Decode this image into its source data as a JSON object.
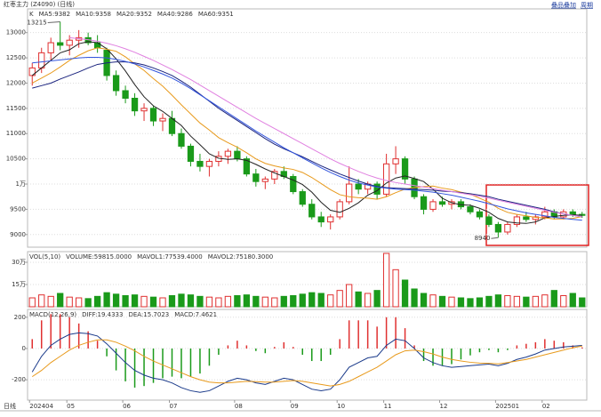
{
  "header": {
    "title": "红枣主力 (Z4090) (日线)",
    "links": [
      "叠品叠加",
      "周期"
    ]
  },
  "x_axis_label": "日线",
  "chart_data": [
    {
      "type": "candlestick",
      "legend_title": "K",
      "categories": [
        "202404",
        null,
        null,
        null,
        "05",
        null,
        null,
        null,
        null,
        null,
        "06",
        null,
        null,
        null,
        null,
        "07",
        null,
        null,
        null,
        null,
        null,
        null,
        "08",
        null,
        null,
        null,
        null,
        null,
        "09",
        null,
        null,
        null,
        null,
        "10",
        null,
        null,
        null,
        null,
        "11",
        null,
        null,
        null,
        null,
        null,
        "12",
        null,
        null,
        null,
        null,
        null,
        "202501",
        null,
        null,
        null,
        null,
        "02",
        null,
        null,
        null,
        null
      ],
      "ohlc": [
        [
          12150,
          12400,
          11950,
          12300
        ],
        [
          12300,
          12700,
          12200,
          12600
        ],
        [
          12600,
          12900,
          12450,
          12800
        ],
        [
          12800,
          13215,
          12650,
          12750
        ],
        [
          12750,
          12950,
          12550,
          12850
        ],
        [
          12850,
          13050,
          12700,
          12900
        ],
        [
          12900,
          13000,
          12750,
          12800
        ],
        [
          12800,
          12950,
          12600,
          12700
        ],
        [
          12650,
          12700,
          12050,
          12150
        ],
        [
          12150,
          12250,
          11750,
          11850
        ],
        [
          11850,
          11950,
          11600,
          11700
        ],
        [
          11700,
          11800,
          11350,
          11450
        ],
        [
          11450,
          11600,
          11250,
          11500
        ],
        [
          11500,
          11550,
          11150,
          11250
        ],
        [
          11250,
          11400,
          11050,
          11300
        ],
        [
          11300,
          11450,
          10950,
          11000
        ],
        [
          11000,
          11100,
          10700,
          10750
        ],
        [
          10750,
          10800,
          10350,
          10450
        ],
        [
          10450,
          10600,
          10250,
          10350
        ],
        [
          10350,
          10500,
          10150,
          10450
        ],
        [
          10450,
          10650,
          10350,
          10550
        ],
        [
          10550,
          10700,
          10400,
          10650
        ],
        [
          10650,
          10750,
          10450,
          10500
        ],
        [
          10500,
          10550,
          10150,
          10200
        ],
        [
          10200,
          10300,
          9950,
          10050
        ],
        [
          10050,
          10150,
          9900,
          10100
        ],
        [
          10100,
          10300,
          10000,
          10250
        ],
        [
          10250,
          10350,
          10100,
          10150
        ],
        [
          10150,
          10200,
          9800,
          9850
        ],
        [
          9850,
          9900,
          9550,
          9600
        ],
        [
          9600,
          9700,
          9300,
          9350
        ],
        [
          9350,
          9450,
          9150,
          9250
        ],
        [
          9250,
          9400,
          9100,
          9350
        ],
        [
          9350,
          9700,
          9300,
          9650
        ],
        [
          9650,
          10350,
          9600,
          10000
        ],
        [
          10000,
          10100,
          9800,
          9900
        ],
        [
          9900,
          10050,
          9800,
          10000
        ],
        [
          10000,
          10050,
          9700,
          9800
        ],
        [
          9800,
          10600,
          9750,
          10400
        ],
        [
          10400,
          10750,
          10200,
          10500
        ],
        [
          10500,
          10550,
          10000,
          10100
        ],
        [
          10100,
          10150,
          9700,
          9750
        ],
        [
          9750,
          9800,
          9400,
          9500
        ],
        [
          9500,
          9700,
          9450,
          9650
        ],
        [
          9650,
          9750,
          9550,
          9600
        ],
        [
          9600,
          9700,
          9500,
          9650
        ],
        [
          9650,
          9700,
          9500,
          9550
        ],
        [
          9550,
          9600,
          9400,
          9450
        ],
        [
          9450,
          9500,
          9300,
          9350
        ],
        [
          9350,
          9400,
          9150,
          9200
        ],
        [
          9200,
          9250,
          8940,
          9050
        ],
        [
          9050,
          9250,
          9000,
          9200
        ],
        [
          9200,
          9400,
          9150,
          9350
        ],
        [
          9350,
          9450,
          9250,
          9300
        ],
        [
          9300,
          9400,
          9200,
          9350
        ],
        [
          9350,
          9550,
          9300,
          9450
        ],
        [
          9450,
          9500,
          9300,
          9350
        ],
        [
          9350,
          9500,
          9300,
          9450
        ],
        [
          9450,
          9500,
          9350,
          9400
        ],
        [
          9400,
          9450,
          9330,
          9380
        ]
      ],
      "up_color": "#e03030",
      "down_color": "#1a9a1a",
      "series": [
        {
          "name": "MA5:9382",
          "color": "#222222",
          "values": [
            12150,
            12300,
            12450,
            12600,
            12660,
            12780,
            12820,
            12800,
            12680,
            12480,
            12240,
            11970,
            11730,
            11550,
            11440,
            11300,
            11160,
            10950,
            10780,
            10600,
            10510,
            10490,
            10500,
            10470,
            10390,
            10300,
            10220,
            10150,
            10080,
            9990,
            9840,
            9640,
            9480,
            9440,
            9520,
            9630,
            9780,
            9870,
            10020,
            10120,
            10160,
            10110,
            10050,
            9900,
            9720,
            9630,
            9590,
            9580,
            9520,
            9440,
            9320,
            9250,
            9230,
            9220,
            9250,
            9330,
            9360,
            9380,
            9390,
            9382
          ]
        },
        {
          "name": "MA10:9358",
          "color": "#e89a1c",
          "values": [
            12000,
            12100,
            12200,
            12320,
            12450,
            12550,
            12640,
            12700,
            12670,
            12630,
            12520,
            12380,
            12250,
            12090,
            11940,
            11760,
            11570,
            11390,
            11210,
            11070,
            10920,
            10820,
            10730,
            10620,
            10500,
            10410,
            10360,
            10320,
            10290,
            10230,
            10130,
            10010,
            9890,
            9790,
            9750,
            9730,
            9720,
            9700,
            9750,
            9830,
            9900,
            9930,
            9950,
            9960,
            9920,
            9890,
            9840,
            9800,
            9720,
            9640,
            9520,
            9440,
            9400,
            9370,
            9340,
            9330,
            9310,
            9310,
            9320,
            9358
          ]
        },
        {
          "name": "MA20:9352",
          "color": "#1a237e",
          "values": [
            11900,
            11950,
            12000,
            12080,
            12150,
            12220,
            12300,
            12370,
            12400,
            12420,
            12420,
            12400,
            12360,
            12300,
            12230,
            12150,
            12040,
            11920,
            11780,
            11640,
            11500,
            11380,
            11260,
            11140,
            11020,
            10900,
            10790,
            10700,
            10620,
            10540,
            10450,
            10360,
            10280,
            10200,
            10130,
            10060,
            10000,
            9950,
            9930,
            9920,
            9910,
            9900,
            9890,
            9880,
            9860,
            9850,
            9830,
            9810,
            9780,
            9750,
            9700,
            9660,
            9620,
            9580,
            9540,
            9500,
            9450,
            9410,
            9380,
            9352
          ]
        },
        {
          "name": "MA40:9286",
          "color": "#3355dd",
          "values": [
            12400,
            12420,
            12440,
            12460,
            12480,
            12500,
            12510,
            12510,
            12500,
            12470,
            12430,
            12380,
            12320,
            12250,
            12180,
            12100,
            12000,
            11890,
            11770,
            11650,
            11530,
            11410,
            11290,
            11170,
            11050,
            10940,
            10830,
            10720,
            10620,
            10520,
            10420,
            10320,
            10230,
            10150,
            10080,
            10020,
            9980,
            9940,
            9920,
            9900,
            9890,
            9880,
            9860,
            9840,
            9810,
            9780,
            9740,
            9700,
            9660,
            9610,
            9560,
            9510,
            9470,
            9430,
            9400,
            9370,
            9340,
            9320,
            9300,
            9286
          ]
        },
        {
          "name": "MA60:9351",
          "color": "#e080e0",
          "values": [
            null,
            null,
            null,
            null,
            12900,
            12880,
            12860,
            12830,
            12790,
            12740,
            12680,
            12610,
            12530,
            12450,
            12360,
            12270,
            12170,
            12070,
            11960,
            11850,
            11740,
            11630,
            11520,
            11410,
            11300,
            11200,
            11100,
            11000,
            10900,
            10800,
            10700,
            10600,
            10500,
            10410,
            10330,
            10250,
            10180,
            10120,
            10070,
            10030,
            10000,
            9970,
            9940,
            9910,
            9880,
            9850,
            9820,
            9790,
            9760,
            9720,
            9680,
            9640,
            9600,
            9560,
            9520,
            9480,
            9440,
            9410,
            9380,
            9351
          ]
        }
      ],
      "ylim": [
        8750,
        13470
      ],
      "yticks": [
        9000,
        9500,
        {
          "value": 10000,
          "label": "1万"
        },
        10500,
        11000,
        11500,
        12000,
        12500,
        13000
      ],
      "grid": true
    },
    {
      "type": "bar",
      "title": "VOL(5,10)",
      "legend": [
        {
          "label": "VOLUME:59815.0000",
          "color": "#222222"
        },
        {
          "label": "MAVOL1:77539.4000",
          "color": "#1a237e"
        },
        {
          "label": "MAVOL2:75180.3000",
          "color": "#e89a1c"
        }
      ],
      "values": [
        60000,
        80000,
        70000,
        90000,
        65000,
        60000,
        55000,
        70000,
        95000,
        85000,
        75000,
        80000,
        70000,
        65000,
        60000,
        75000,
        85000,
        80000,
        70000,
        65000,
        60000,
        70000,
        75000,
        80000,
        70000,
        65000,
        60000,
        70000,
        75000,
        85000,
        95000,
        90000,
        80000,
        110000,
        150000,
        100000,
        90000,
        110000,
        360000,
        250000,
        180000,
        120000,
        90000,
        80000,
        70000,
        65000,
        60000,
        55000,
        60000,
        70000,
        80000,
        75000,
        70000,
        65000,
        70000,
        80000,
        110000,
        75000,
        90000,
        59815
      ],
      "ylim": [
        0,
        372000
      ],
      "yticks": [
        {
          "value": 150000,
          "label": "15万"
        },
        {
          "value": 300000,
          "label": "30万"
        }
      ],
      "grid": true
    },
    {
      "type": "macd",
      "title": "MACD(12,26,9)",
      "series": [
        {
          "name": "DIFF:19.4333",
          "color": "#1a3a8a",
          "values": [
            -150,
            -50,
            20,
            60,
            90,
            100,
            95,
            80,
            30,
            -30,
            -90,
            -140,
            -170,
            -190,
            -200,
            -220,
            -250,
            -270,
            -280,
            -270,
            -240,
            -210,
            -190,
            -200,
            -220,
            -230,
            -210,
            -190,
            -200,
            -230,
            -260,
            -270,
            -260,
            -200,
            -120,
            -90,
            -60,
            -50,
            20,
            60,
            50,
            0,
            -60,
            -90,
            -110,
            -120,
            -115,
            -110,
            -105,
            -100,
            -110,
            -95,
            -70,
            -55,
            -35,
            -10,
            0,
            10,
            15,
            19.4333
          ]
        },
        {
          "name": "DEA:15.7023",
          "color": "#e89a1c",
          "values": [
            -180,
            -140,
            -90,
            -50,
            -10,
            20,
            40,
            55,
            55,
            40,
            15,
            -15,
            -50,
            -80,
            -105,
            -130,
            -155,
            -180,
            -200,
            -215,
            -220,
            -220,
            -215,
            -210,
            -212,
            -215,
            -215,
            -210,
            -205,
            -210,
            -220,
            -230,
            -240,
            -230,
            -210,
            -180,
            -150,
            -120,
            -80,
            -40,
            -15,
            -10,
            -20,
            -35,
            -55,
            -70,
            -80,
            -88,
            -93,
            -95,
            -98,
            -90,
            -80,
            -70,
            -55,
            -40,
            -25,
            -10,
            5,
            15.7023
          ]
        }
      ],
      "bars": {
        "name": "MACD:7.4621",
        "color": "#e03030",
        "negative_color": "#1a9a1a",
        "values": [
          60,
          180,
          220,
          220,
          200,
          160,
          110,
          50,
          -50,
          -140,
          -210,
          -250,
          -240,
          -220,
          -190,
          -180,
          -190,
          -180,
          -160,
          -110,
          -40,
          20,
          50,
          20,
          -16,
          -30,
          10,
          40,
          10,
          -40,
          -80,
          -80,
          -40,
          60,
          180,
          180,
          180,
          140,
          200,
          200,
          130,
          20,
          -80,
          -110,
          -110,
          -100,
          -70,
          -44,
          -24,
          -10,
          -24,
          -10,
          20,
          30,
          40,
          60,
          50,
          40,
          20,
          7.4621
        ]
      },
      "ylim": [
        -330,
        250
      ],
      "yticks": [
        -200,
        0,
        200
      ],
      "grid": true
    }
  ]
}
